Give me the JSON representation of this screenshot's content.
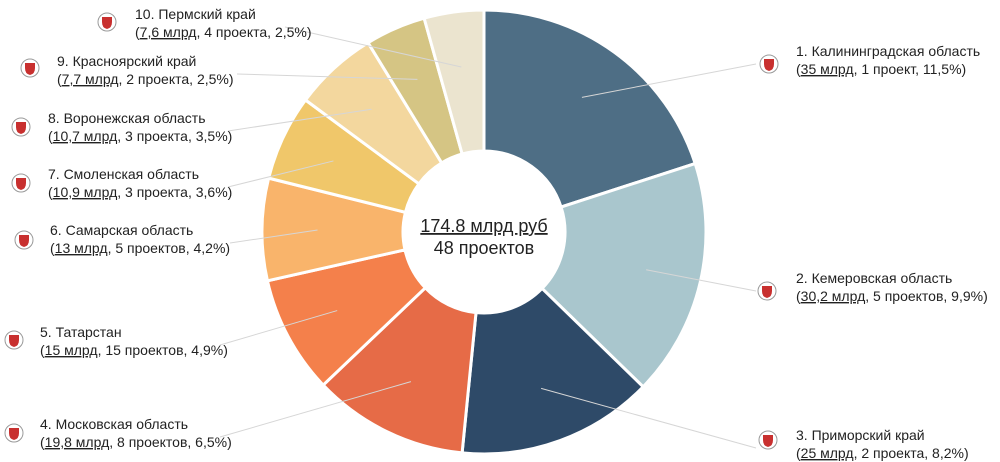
{
  "chart_data": {
    "type": "pie",
    "style": "donut",
    "center": {
      "total": "174.8 млрд руб",
      "count": "48 проектов"
    },
    "slices": [
      {
        "name": "1. Калининградская область",
        "amount": "35 млрд",
        "projects": "1 проект",
        "percent_label": "11,5%",
        "value": 35.0,
        "color": "#4e6e85",
        "icon": "kaliningrad-coat-of-arms-icon"
      },
      {
        "name": "2. Кемеровская область",
        "amount": "30,2 млрд",
        "projects": "5 проектов",
        "percent_label": "9,9%",
        "value": 30.2,
        "color": "#a9c6cd",
        "icon": "kemerovo-coat-of-arms-icon"
      },
      {
        "name": "3. Приморский край",
        "amount": "25 млрд",
        "projects": "2 проекта",
        "percent_label": "8,2%",
        "value": 25.0,
        "color": "#2e4a68",
        "icon": "primorsky-coat-of-arms-icon"
      },
      {
        "name": "4. Московская область",
        "amount": "19,8 млрд",
        "projects": "8 проектов",
        "percent_label": "6,5%",
        "value": 19.8,
        "color": "#e66b47",
        "icon": "moscow-oblast-coat-of-arms-icon"
      },
      {
        "name": "5. Татарстан",
        "amount": "15 млрд",
        "projects": "15 проектов",
        "percent_label": "4,9%",
        "value": 15.0,
        "color": "#f4804b",
        "icon": "tatarstan-coat-of-arms-icon"
      },
      {
        "name": "6. Самарская область",
        "amount": "13 млрд",
        "projects": "5 проектов",
        "percent_label": "4,2%",
        "value": 13.0,
        "color": "#f9b46b",
        "icon": "samara-coat-of-arms-icon"
      },
      {
        "name": "7. Смоленская область",
        "amount": "10,9 млрд",
        "projects": "3 проекта",
        "percent_label": "3,6%",
        "value": 10.9,
        "color": "#f0c76a",
        "icon": "smolensk-coat-of-arms-icon"
      },
      {
        "name": "8. Воронежская область",
        "amount": "10,7 млрд",
        "projects": "3 проекта",
        "percent_label": "3,5%",
        "value": 10.7,
        "color": "#f3d79e",
        "icon": "voronezh-coat-of-arms-icon"
      },
      {
        "name": "9. Красноярский край",
        "amount": "7,7 млрд",
        "projects": "2 проекта",
        "percent_label": "2,5%",
        "value": 7.7,
        "color": "#d5c584",
        "icon": "krasnoyarsk-coat-of-arms-icon"
      },
      {
        "name": "10. Пермский край",
        "amount": "7,6 млрд",
        "projects": "4 проекта",
        "percent_label": "2,5%",
        "value": 7.6,
        "color": "#ebe4cf",
        "icon": "perm-coat-of-arms-icon"
      }
    ],
    "legend": "none"
  }
}
